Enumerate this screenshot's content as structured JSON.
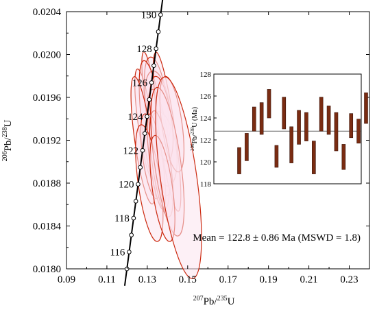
{
  "chart_data": [
    {
      "type": "concordia",
      "xlabel": {
        "sup": "207",
        "base": "Pb/",
        "sup2": "235",
        "end": "U"
      },
      "ylabel": {
        "sup": "206",
        "base": "Pb/",
        "sup2": "238",
        "end": "U"
      },
      "xlim": [
        0.09,
        0.24
      ],
      "ylim": [
        0.018,
        0.0204
      ],
      "xticks": [
        0.09,
        0.11,
        0.13,
        0.15,
        0.17,
        0.19,
        0.21,
        0.23
      ],
      "xtick_labels": [
        "0.09",
        "0.11",
        "0.13",
        "0.15",
        "0.17",
        "0.19",
        "0.21",
        "0.23"
      ],
      "yticks": [
        0.018,
        0.0184,
        0.0188,
        0.0192,
        0.0196,
        0.02,
        0.0204
      ],
      "ytick_labels": [
        "0.0180",
        "0.0184",
        "0.0188",
        "0.0192",
        "0.0196",
        "0.0200",
        "0.0204"
      ],
      "concordia_ages_ma": [
        115,
        116,
        117,
        118,
        119,
        120,
        121,
        122,
        123,
        124,
        125,
        126,
        127,
        128,
        129,
        130
      ],
      "age_labels": [
        "116",
        "118",
        "120",
        "122",
        "124",
        "126",
        "128",
        "130"
      ],
      "ellipses": [
        {
          "x": 0.1318,
          "y": 0.01955,
          "rx": 0.0028,
          "ry": 0.00048
        },
        {
          "x": 0.1345,
          "y": 0.01958,
          "rx": 0.0052,
          "ry": 0.0004
        },
        {
          "x": 0.129,
          "y": 0.01935,
          "rx": 0.0035,
          "ry": 0.00052
        },
        {
          "x": 0.1352,
          "y": 0.0195,
          "rx": 0.006,
          "ry": 0.00035
        },
        {
          "x": 0.1335,
          "y": 0.01925,
          "rx": 0.0055,
          "ry": 0.0007
        },
        {
          "x": 0.1362,
          "y": 0.01918,
          "rx": 0.0045,
          "ry": 0.0005
        },
        {
          "x": 0.128,
          "y": 0.0192,
          "rx": 0.0042,
          "ry": 0.0006
        },
        {
          "x": 0.1378,
          "y": 0.01912,
          "rx": 0.0065,
          "ry": 0.00035
        },
        {
          "x": 0.1398,
          "y": 0.01928,
          "rx": 0.004,
          "ry": 0.00075
        },
        {
          "x": 0.137,
          "y": 0.0194,
          "rx": 0.005,
          "ry": 0.0004
        },
        {
          "x": 0.1422,
          "y": 0.01935,
          "rx": 0.005,
          "ry": 0.00045
        },
        {
          "x": 0.1317,
          "y": 0.01905,
          "rx": 0.004,
          "ry": 0.0004
        },
        {
          "x": 0.1345,
          "y": 0.019,
          "rx": 0.0032,
          "ry": 0.00045
        },
        {
          "x": 0.137,
          "y": 0.01898,
          "rx": 0.0045,
          "ry": 0.0005
        },
        {
          "x": 0.131,
          "y": 0.0188,
          "rx": 0.0055,
          "ry": 0.00055
        },
        {
          "x": 0.14,
          "y": 0.019,
          "rx": 0.0065,
          "ry": 0.0007
        },
        {
          "x": 0.1375,
          "y": 0.01875,
          "rx": 0.005,
          "ry": 0.0005
        },
        {
          "x": 0.1455,
          "y": 0.01885,
          "rx": 0.009,
          "ry": 0.00095
        }
      ],
      "annotation": "Mean = 122.8 ± 0.86 Ma (MSWD = 1.8)"
    },
    {
      "type": "bar",
      "name": "inset",
      "ylabel": {
        "sup": "206",
        "base": "Pb/",
        "sup2": "238",
        "end": "U (Ma)"
      },
      "ylim": [
        118,
        128
      ],
      "yticks": [
        118,
        120,
        122,
        124,
        126,
        128
      ],
      "ytick_labels": [
        "118",
        "120",
        "122",
        "124",
        "126",
        "128"
      ],
      "mean": 122.8,
      "bars": [
        {
          "low": 118.9,
          "high": 121.3
        },
        {
          "low": 120.1,
          "high": 122.6
        },
        {
          "low": 122.8,
          "high": 125.0
        },
        {
          "low": 122.5,
          "high": 125.4
        },
        {
          "low": 124.0,
          "high": 126.6
        },
        {
          "low": 119.5,
          "high": 121.5
        },
        {
          "low": 123.0,
          "high": 125.9
        },
        {
          "low": 119.9,
          "high": 123.2
        },
        {
          "low": 121.6,
          "high": 124.7
        },
        {
          "low": 121.9,
          "high": 124.5
        },
        {
          "low": 118.9,
          "high": 121.9
        },
        {
          "low": 122.8,
          "high": 125.9
        },
        {
          "low": 122.5,
          "high": 125.1
        },
        {
          "low": 121.0,
          "high": 124.5
        },
        {
          "low": 119.3,
          "high": 121.6
        },
        {
          "low": 122.2,
          "high": 124.4
        },
        {
          "low": 121.7,
          "high": 123.9
        },
        {
          "low": 123.5,
          "high": 126.3
        }
      ]
    }
  ],
  "background_labels": [
    "124",
    "122",
    "Mean",
    "MSWD"
  ],
  "colors": {
    "ellipse_stroke": "#cc2a10",
    "ellipse_fill": "#fbe3ee",
    "curve": "#000000",
    "bar_fill": "#7a2c12",
    "bar_stroke": "#3a140a",
    "mean_line": "#666666"
  }
}
